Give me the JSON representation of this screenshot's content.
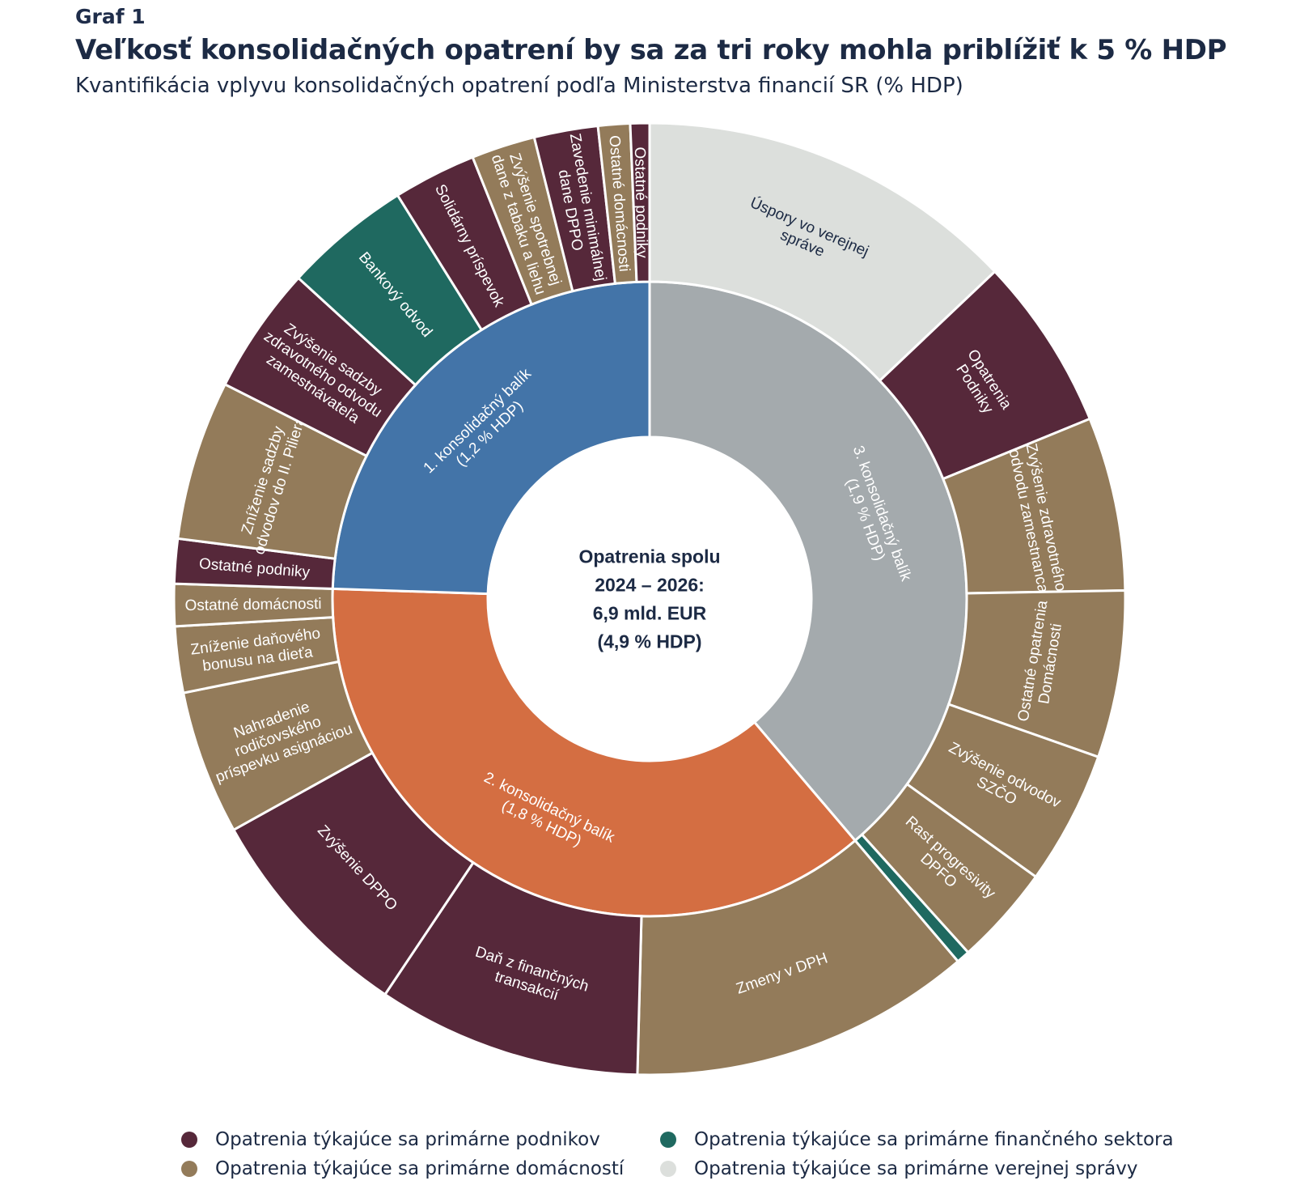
{
  "header": {
    "graf_label": "Graf 1",
    "title": "Veľkosť konsolidačných opatrení by sa za tri roky mohla priblížiť k 5 % HDP",
    "subtitle": "Kvantifikácia vplyvu konsolidačných opatrení podľa Ministerstva financií SR (% HDP)"
  },
  "colors": {
    "podniky": "#56283a",
    "domacnosti": "#937b5a",
    "financny_sektor": "#1f6960",
    "verejna_sprava": "#dcdfdc",
    "balik_1": "#4374a8",
    "balik_2": "#d46e42",
    "balik_3": "#a4aaad"
  },
  "chart_data": {
    "type": "sunburst",
    "title": "Veľkosť konsolidačných opatrení by sa za tri roky mohla priblížiť k 5 % HDP",
    "subtitle": "Kvantifikácia vplyvu konsolidačných opatrení podľa Ministerstva financií SR (% HDP)",
    "center_label": [
      "Opatrenia spolu",
      "2024 – 2026:",
      "6,9 mld. EUR",
      "(4,9 % HDP)"
    ],
    "total_mld_eur": 6.9,
    "total_pct_hdp": 4.9,
    "legend_placement": "bottom",
    "inner_ring": [
      {
        "name": "3. konsolidačný balík",
        "label": [
          "3. konsolidačný balík",
          "(1,9 % HDP)"
        ],
        "value": 1.9,
        "color_key": "balik_3"
      },
      {
        "name": "2. konsolidačný balík",
        "label": [
          "2. konsolidačný balík",
          "(1,8 % HDP)"
        ],
        "value": 1.8,
        "color_key": "balik_2"
      },
      {
        "name": "1. konsolidačný balík",
        "label": [
          "1. konsolidačný balík",
          "(1,2 % HDP)"
        ],
        "value": 1.2,
        "color_key": "balik_1"
      }
    ],
    "outer_ring": [
      {
        "parent": 0,
        "label": [
          "Úspory vo verejnej",
          "správe"
        ],
        "value": 0.57,
        "category": "verejna_sprava"
      },
      {
        "parent": 0,
        "label": [
          "Opatrenia",
          "Podniky"
        ],
        "value": 0.26,
        "category": "podniky"
      },
      {
        "parent": 0,
        "label": [
          "Zvýšenie zdravotného",
          "odvodu zamestnanca"
        ],
        "value": 0.26,
        "category": "domacnosti"
      },
      {
        "parent": 0,
        "label": [
          "Ostatné opatrenia",
          "Domácnosti"
        ],
        "value": 0.25,
        "category": "domacnosti"
      },
      {
        "parent": 0,
        "label": [
          "Zvýšenie odvodov",
          "SZČO"
        ],
        "value": 0.2,
        "category": "domacnosti"
      },
      {
        "parent": 0,
        "label": [
          "Rast progresivity",
          "DPFO"
        ],
        "value": 0.15,
        "category": "domacnosti"
      },
      {
        "parent": 0,
        "label": [],
        "value": 0.02,
        "category": "financny_sektor"
      },
      {
        "parent": 1,
        "label": [
          "Zmeny v DPH"
        ],
        "value": 0.57,
        "category": "domacnosti"
      },
      {
        "parent": 1,
        "label": [
          "Daň z finančných",
          "transakcií"
        ],
        "value": 0.44,
        "category": "podniky"
      },
      {
        "parent": 1,
        "label": [
          "Zvýšenie DPPO"
        ],
        "value": 0.37,
        "category": "podniky"
      },
      {
        "parent": 1,
        "label": [
          "Nahradenie",
          "rodičovského",
          "príspevku asignáciou"
        ],
        "value": 0.24,
        "category": "domacnosti"
      },
      {
        "parent": 1,
        "label": [
          "Zníženie daňového",
          "bonusu na dieťa"
        ],
        "value": 0.11,
        "category": "domacnosti"
      },
      {
        "parent": 1,
        "label": [
          "Ostatné domácnosti"
        ],
        "value": 0.07,
        "category": "domacnosti"
      },
      {
        "parent": 2,
        "label": [
          "Ostatné podniky"
        ],
        "value": 0.07,
        "category": "podniky"
      },
      {
        "parent": 2,
        "label": [
          "Zníženie sadzby",
          "odvodov do II. Piliera"
        ],
        "value": 0.25,
        "category": "domacnosti"
      },
      {
        "parent": 2,
        "label": [
          "Zvýšenie sadzby",
          "zdravotného odvodu",
          "zamestnávateľa"
        ],
        "value": 0.2,
        "category": "podniky"
      },
      {
        "parent": 2,
        "label": [
          "Bankový odvod"
        ],
        "value": 0.2,
        "category": "financny_sektor"
      },
      {
        "parent": 2,
        "label": [
          "Solidárny príspevok"
        ],
        "value": 0.13,
        "category": "podniky"
      },
      {
        "parent": 2,
        "label": [
          "Zvýšenie spotrebnej",
          "dane z tabaku a liehu"
        ],
        "value": 0.1,
        "category": "domacnosti"
      },
      {
        "parent": 2,
        "label": [
          "Zavedenie minimálnej",
          "dane DPPO"
        ],
        "value": 0.1,
        "category": "podniky"
      },
      {
        "parent": 2,
        "label": [
          "Ostatné domácnosti"
        ],
        "value": 0.05,
        "category": "domacnosti"
      },
      {
        "parent": 2,
        "label": [
          "Ostatné podniky"
        ],
        "value": 0.03,
        "category": "podniky"
      }
    ]
  },
  "legend": [
    {
      "label": "Opatrenia týkajúce sa primárne podnikov",
      "color_key": "podniky"
    },
    {
      "label": "Opatrenia týkajúce sa primárne domácností",
      "color_key": "domacnosti"
    },
    {
      "label": "Opatrenia týkajúce sa primárne finančného sektora",
      "color_key": "financny_sektor"
    },
    {
      "label": "Opatrenia týkajúce sa primárne verejnej správy",
      "color_key": "verejna_sprava"
    }
  ]
}
